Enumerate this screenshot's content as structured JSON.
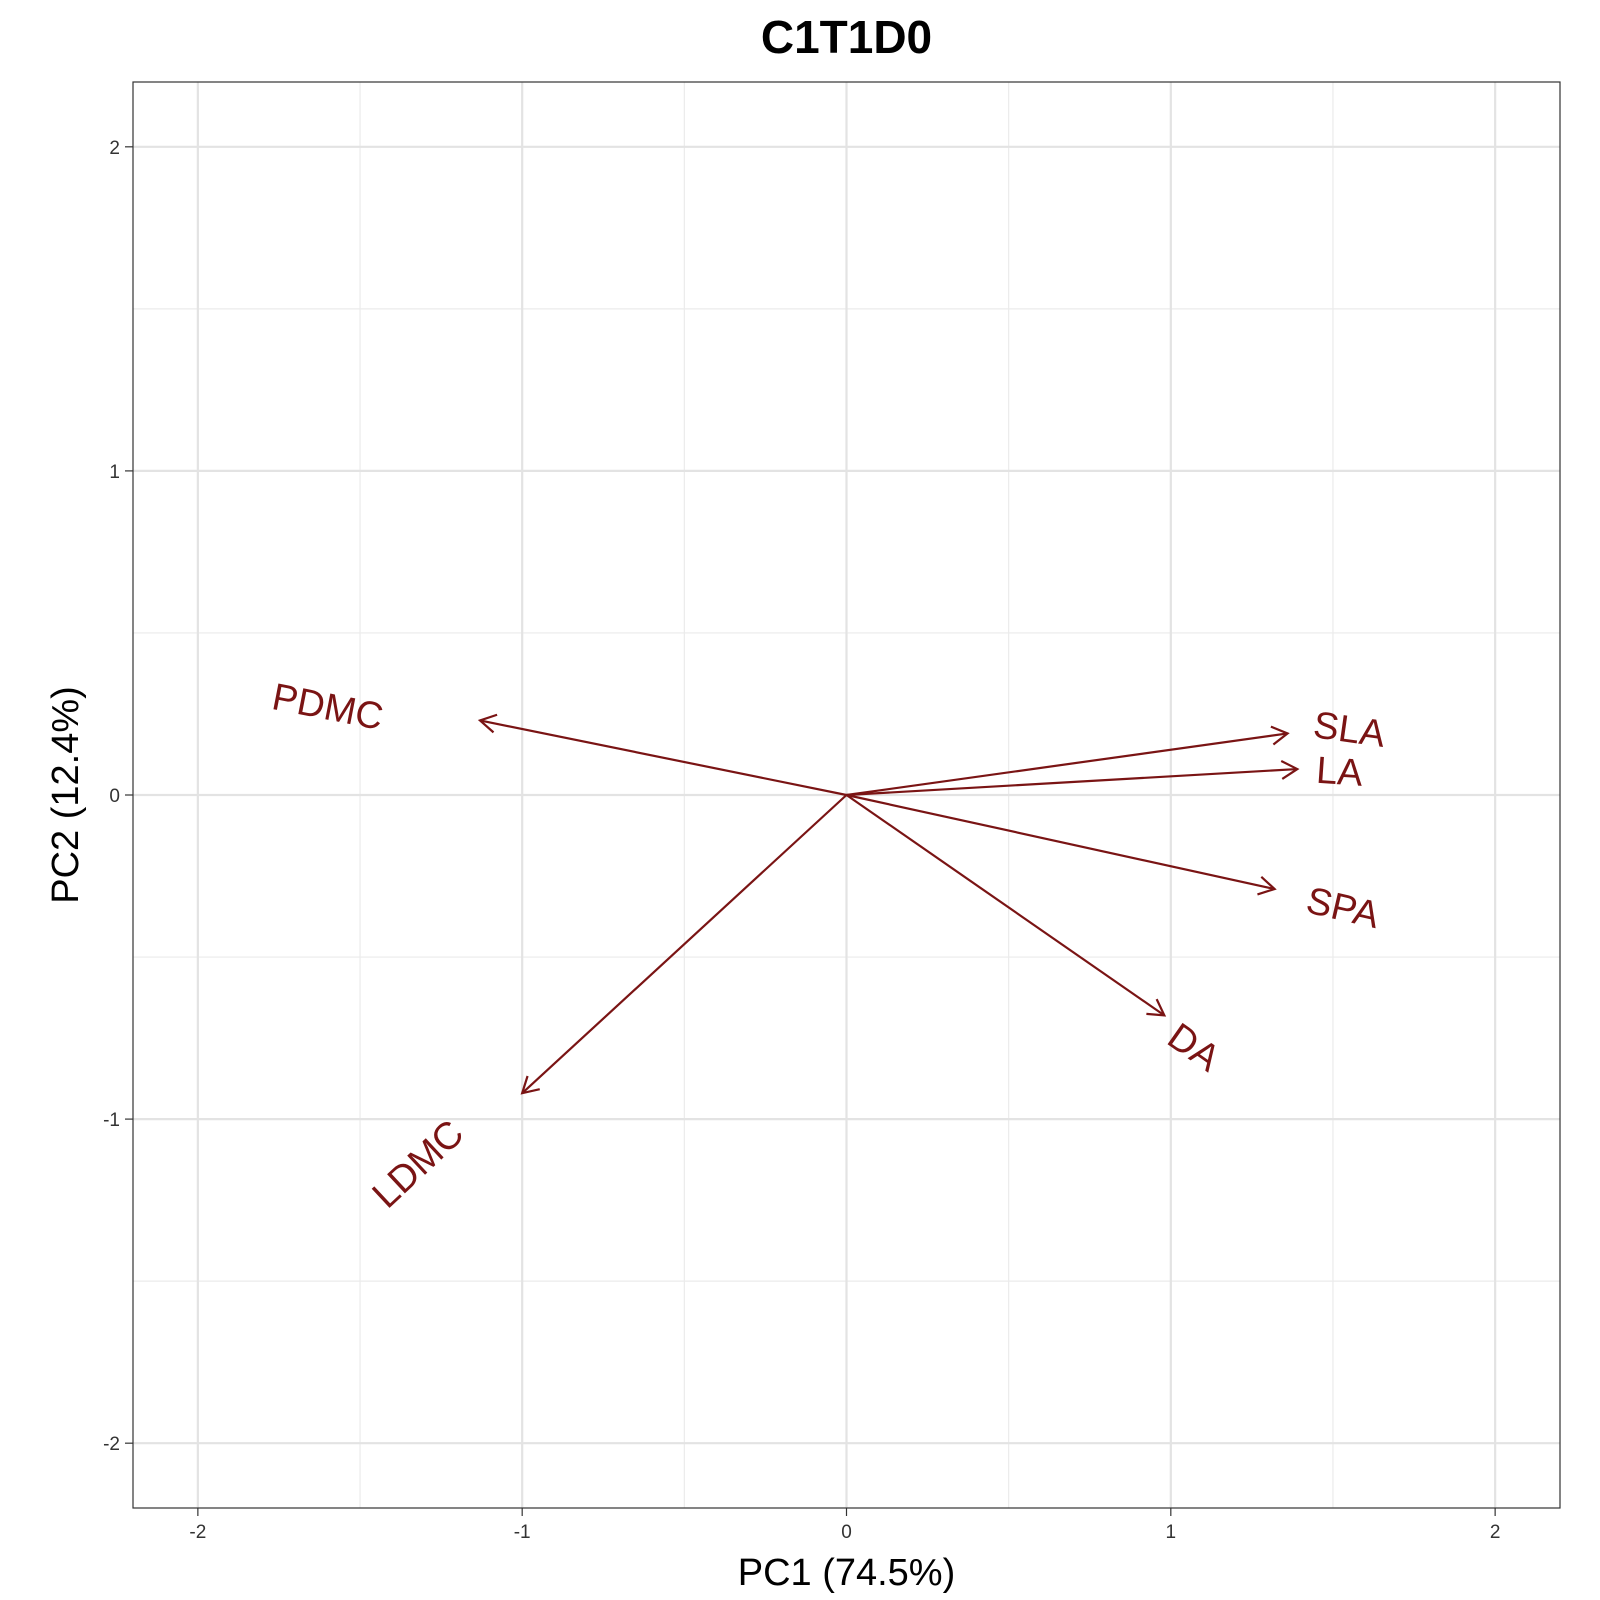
{
  "chart_data": {
    "type": "scatter",
    "subtype": "pca-biplot-loadings",
    "title": "C1T1D0",
    "xlabel": "PC1 (74.5%)",
    "ylabel": "PC2 (12.4%)",
    "xlim": [
      -2.2,
      2.2
    ],
    "ylim": [
      -2.2,
      2.2
    ],
    "x_ticks": [
      -2,
      -1,
      0,
      1,
      2
    ],
    "y_ticks": [
      -2,
      -1,
      0,
      1,
      2
    ],
    "grid": true,
    "arrow_color": "#7a1414",
    "label_color": "#7a1414",
    "vectors": [
      {
        "name": "SLA",
        "x": 1.36,
        "y": 0.19,
        "label_x": 1.55,
        "label_y": 0.2,
        "label_angle": 8
      },
      {
        "name": "LA",
        "x": 1.39,
        "y": 0.08,
        "label_x": 1.52,
        "label_y": 0.07,
        "label_angle": 4
      },
      {
        "name": "SPA",
        "x": 1.32,
        "y": -0.29,
        "label_x": 1.53,
        "label_y": -0.35,
        "label_angle": 13
      },
      {
        "name": "DA",
        "x": 0.98,
        "y": -0.68,
        "label_x": 1.07,
        "label_y": -0.78,
        "label_angle": 35
      },
      {
        "name": "LDMC",
        "x": -1.0,
        "y": -0.92,
        "label_x": -1.32,
        "label_y": -1.14,
        "label_angle": -43
      },
      {
        "name": "PDMC",
        "x": -1.13,
        "y": 0.23,
        "label_x": -1.6,
        "label_y": 0.27,
        "label_angle": 11
      }
    ]
  }
}
